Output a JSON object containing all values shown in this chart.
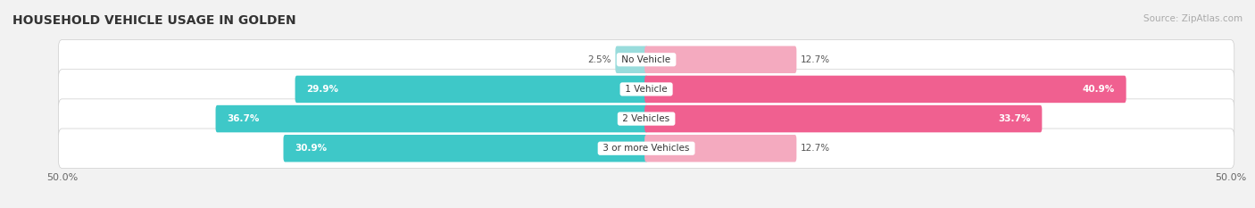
{
  "title": "HOUSEHOLD VEHICLE USAGE IN GOLDEN",
  "source": "Source: ZipAtlas.com",
  "categories": [
    "No Vehicle",
    "1 Vehicle",
    "2 Vehicles",
    "3 or more Vehicles"
  ],
  "owner_values": [
    2.5,
    29.9,
    36.7,
    30.9
  ],
  "renter_values": [
    12.7,
    40.9,
    33.7,
    12.7
  ],
  "owner_color": "#3EC8C8",
  "renter_color": "#F06090",
  "owner_color_light": "#99DCDC",
  "renter_color_light": "#F4AABF",
  "axis_limit": 50.0,
  "background_color": "#f2f2f2",
  "row_bg_color": "#e8e8e8",
  "title_fontsize": 10,
  "source_fontsize": 7.5,
  "label_fontsize": 7.5,
  "value_fontsize": 7.5,
  "tick_fontsize": 8
}
